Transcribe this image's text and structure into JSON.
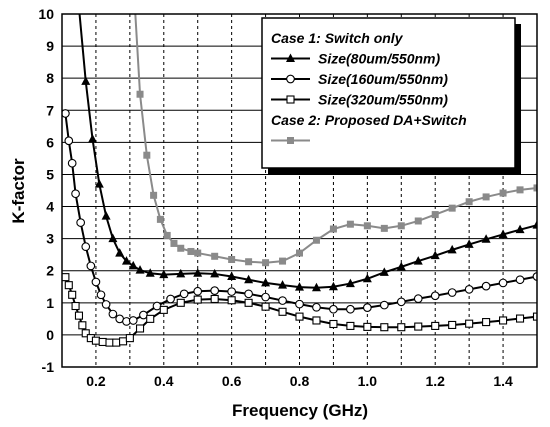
{
  "chart_data": {
    "type": "line",
    "xlabel": "Frequency (GHz)",
    "ylabel": "K-factor",
    "xlim": [
      0.1,
      1.5
    ],
    "ylim": [
      -1,
      10
    ],
    "x_ticks": [
      "0.2",
      "0.4",
      "0.6",
      "0.8",
      "1.0",
      "1.2",
      "1.4"
    ],
    "y_ticks": [
      "-1",
      "0",
      "1",
      "2",
      "3",
      "4",
      "5",
      "6",
      "7",
      "8",
      "9",
      "10"
    ],
    "grid": "horizontal solid, vertical dashed",
    "legend": {
      "placement": "top-right",
      "entries": [
        {
          "kind": "header",
          "text": "Case 1: Switch only"
        },
        {
          "kind": "series",
          "series": 0,
          "text": "Size(80um/550nm)"
        },
        {
          "kind": "series",
          "series": 1,
          "text": "Size(160um/550nm)"
        },
        {
          "kind": "series",
          "series": 2,
          "text": "Size(320um/550nm)"
        },
        {
          "kind": "header",
          "text": "Case 2: Proposed DA+Switch"
        },
        {
          "kind": "series",
          "series": 3,
          "text": ""
        }
      ]
    },
    "series": [
      {
        "name": "Size(80um/550nm)",
        "marker": "filled-triangle",
        "color": "#000000",
        "points": [
          [
            0.13,
            12.5
          ],
          [
            0.15,
            10.2
          ],
          [
            0.17,
            7.9
          ],
          [
            0.19,
            6.1
          ],
          [
            0.21,
            4.7
          ],
          [
            0.23,
            3.7
          ],
          [
            0.25,
            3.0
          ],
          [
            0.27,
            2.55
          ],
          [
            0.29,
            2.3
          ],
          [
            0.31,
            2.15
          ],
          [
            0.33,
            2.02
          ],
          [
            0.36,
            1.92
          ],
          [
            0.4,
            1.88
          ],
          [
            0.45,
            1.9
          ],
          [
            0.5,
            1.92
          ],
          [
            0.55,
            1.9
          ],
          [
            0.6,
            1.82
          ],
          [
            0.65,
            1.72
          ],
          [
            0.7,
            1.62
          ],
          [
            0.75,
            1.55
          ],
          [
            0.8,
            1.49
          ],
          [
            0.85,
            1.47
          ],
          [
            0.9,
            1.5
          ],
          [
            0.95,
            1.6
          ],
          [
            1.0,
            1.75
          ],
          [
            1.05,
            1.95
          ],
          [
            1.1,
            2.12
          ],
          [
            1.15,
            2.3
          ],
          [
            1.2,
            2.47
          ],
          [
            1.25,
            2.65
          ],
          [
            1.3,
            2.82
          ],
          [
            1.35,
            2.98
          ],
          [
            1.4,
            3.13
          ],
          [
            1.45,
            3.28
          ],
          [
            1.5,
            3.42
          ]
        ]
      },
      {
        "name": "Size(160um/550nm)",
        "marker": "open-circle",
        "color": "#000000",
        "points": [
          [
            0.11,
            6.9
          ],
          [
            0.12,
            6.05
          ],
          [
            0.13,
            5.35
          ],
          [
            0.14,
            4.4
          ],
          [
            0.155,
            3.5
          ],
          [
            0.17,
            2.75
          ],
          [
            0.185,
            2.15
          ],
          [
            0.2,
            1.65
          ],
          [
            0.215,
            1.25
          ],
          [
            0.23,
            0.95
          ],
          [
            0.25,
            0.65
          ],
          [
            0.27,
            0.5
          ],
          [
            0.29,
            0.42
          ],
          [
            0.31,
            0.45
          ],
          [
            0.34,
            0.62
          ],
          [
            0.38,
            0.9
          ],
          [
            0.42,
            1.12
          ],
          [
            0.46,
            1.28
          ],
          [
            0.5,
            1.36
          ],
          [
            0.55,
            1.38
          ],
          [
            0.6,
            1.35
          ],
          [
            0.65,
            1.28
          ],
          [
            0.7,
            1.18
          ],
          [
            0.75,
            1.07
          ],
          [
            0.8,
            0.96
          ],
          [
            0.85,
            0.86
          ],
          [
            0.9,
            0.8
          ],
          [
            0.95,
            0.8
          ],
          [
            1.0,
            0.85
          ],
          [
            1.05,
            0.93
          ],
          [
            1.1,
            1.03
          ],
          [
            1.15,
            1.13
          ],
          [
            1.2,
            1.22
          ],
          [
            1.25,
            1.32
          ],
          [
            1.3,
            1.42
          ],
          [
            1.35,
            1.52
          ],
          [
            1.4,
            1.62
          ],
          [
            1.45,
            1.72
          ],
          [
            1.5,
            1.82
          ]
        ]
      },
      {
        "name": "Size(320um/550nm)",
        "marker": "open-square",
        "color": "#000000",
        "points": [
          [
            0.11,
            1.8
          ],
          [
            0.12,
            1.55
          ],
          [
            0.13,
            1.25
          ],
          [
            0.14,
            0.9
          ],
          [
            0.15,
            0.6
          ],
          [
            0.16,
            0.3
          ],
          [
            0.17,
            0.05
          ],
          [
            0.185,
            -0.1
          ],
          [
            0.2,
            -0.18
          ],
          [
            0.22,
            -0.22
          ],
          [
            0.24,
            -0.24
          ],
          [
            0.26,
            -0.24
          ],
          [
            0.28,
            -0.2
          ],
          [
            0.3,
            -0.1
          ],
          [
            0.33,
            0.2
          ],
          [
            0.36,
            0.5
          ],
          [
            0.4,
            0.78
          ],
          [
            0.45,
            1.0
          ],
          [
            0.5,
            1.1
          ],
          [
            0.55,
            1.12
          ],
          [
            0.6,
            1.08
          ],
          [
            0.65,
            1.0
          ],
          [
            0.7,
            0.88
          ],
          [
            0.75,
            0.72
          ],
          [
            0.8,
            0.57
          ],
          [
            0.85,
            0.45
          ],
          [
            0.9,
            0.34
          ],
          [
            0.95,
            0.28
          ],
          [
            1.0,
            0.25
          ],
          [
            1.05,
            0.24
          ],
          [
            1.1,
            0.24
          ],
          [
            1.15,
            0.26
          ],
          [
            1.2,
            0.28
          ],
          [
            1.25,
            0.31
          ],
          [
            1.3,
            0.35
          ],
          [
            1.35,
            0.4
          ],
          [
            1.4,
            0.45
          ],
          [
            1.45,
            0.51
          ],
          [
            1.5,
            0.57
          ]
        ]
      },
      {
        "name": "Proposed DA+Switch",
        "marker": "filled-square",
        "color": "#8a8a8a",
        "points": [
          [
            0.315,
            10.2
          ],
          [
            0.33,
            7.5
          ],
          [
            0.35,
            5.6
          ],
          [
            0.37,
            4.35
          ],
          [
            0.39,
            3.6
          ],
          [
            0.41,
            3.1
          ],
          [
            0.43,
            2.85
          ],
          [
            0.45,
            2.7
          ],
          [
            0.48,
            2.6
          ],
          [
            0.5,
            2.55
          ],
          [
            0.55,
            2.45
          ],
          [
            0.6,
            2.35
          ],
          [
            0.65,
            2.28
          ],
          [
            0.7,
            2.25
          ],
          [
            0.75,
            2.3
          ],
          [
            0.8,
            2.55
          ],
          [
            0.85,
            2.95
          ],
          [
            0.9,
            3.3
          ],
          [
            0.95,
            3.45
          ],
          [
            1.0,
            3.4
          ],
          [
            1.05,
            3.32
          ],
          [
            1.1,
            3.4
          ],
          [
            1.15,
            3.55
          ],
          [
            1.2,
            3.75
          ],
          [
            1.25,
            3.95
          ],
          [
            1.3,
            4.15
          ],
          [
            1.35,
            4.3
          ],
          [
            1.4,
            4.42
          ],
          [
            1.45,
            4.52
          ],
          [
            1.5,
            4.58
          ]
        ]
      }
    ]
  }
}
